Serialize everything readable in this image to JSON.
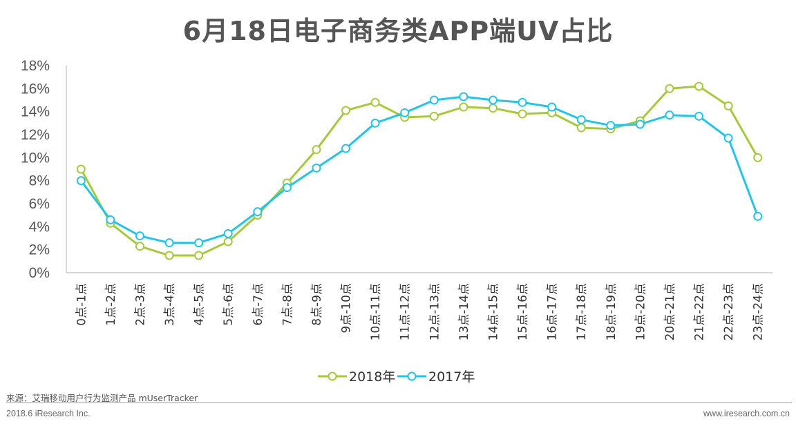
{
  "chart_data": {
    "type": "line",
    "title": "6月18日电子商务类APP端UV占比",
    "categories": [
      "0点-1点",
      "1点-2点",
      "2点-3点",
      "3点-4点",
      "4点-5点",
      "5点-6点",
      "6点-7点",
      "7点-8点",
      "8点-9点",
      "9点-10点",
      "10点-11点",
      "11点-12点",
      "12点-13点",
      "13点-14点",
      "14点-15点",
      "15点-16点",
      "16点-17点",
      "17点-18点",
      "18点-19点",
      "19点-20点",
      "20点-21点",
      "21点-22点",
      "22点-23点",
      "23点-24点"
    ],
    "series": [
      {
        "name": "2018年",
        "color": "#a6c93a",
        "values": [
          9.0,
          4.3,
          2.3,
          1.5,
          1.5,
          2.7,
          5.0,
          7.8,
          10.7,
          14.1,
          14.8,
          13.5,
          13.6,
          14.4,
          14.3,
          13.8,
          13.9,
          12.6,
          12.5,
          13.2,
          16.0,
          16.2,
          14.5,
          10.0
        ]
      },
      {
        "name": "2017年",
        "color": "#22c4ea",
        "values": [
          8.0,
          4.6,
          3.2,
          2.6,
          2.6,
          3.4,
          5.3,
          7.4,
          9.1,
          10.8,
          13.0,
          13.9,
          15.0,
          15.3,
          15.0,
          14.8,
          14.4,
          13.3,
          12.8,
          12.9,
          13.7,
          13.6,
          11.7,
          4.9
        ]
      }
    ],
    "yticks": [
      "0%",
      "2%",
      "4%",
      "6%",
      "8%",
      "10%",
      "12%",
      "14%",
      "16%",
      "18%"
    ],
    "ylim": [
      0,
      18
    ],
    "grid": false,
    "legend": "bottom-center"
  },
  "footer": {
    "source": "来源：艾瑞移动用户行为监测产品 mUserTracker",
    "copyright": "2018.6 iResearch Inc.",
    "website": "www.iresearch.com.cn"
  }
}
